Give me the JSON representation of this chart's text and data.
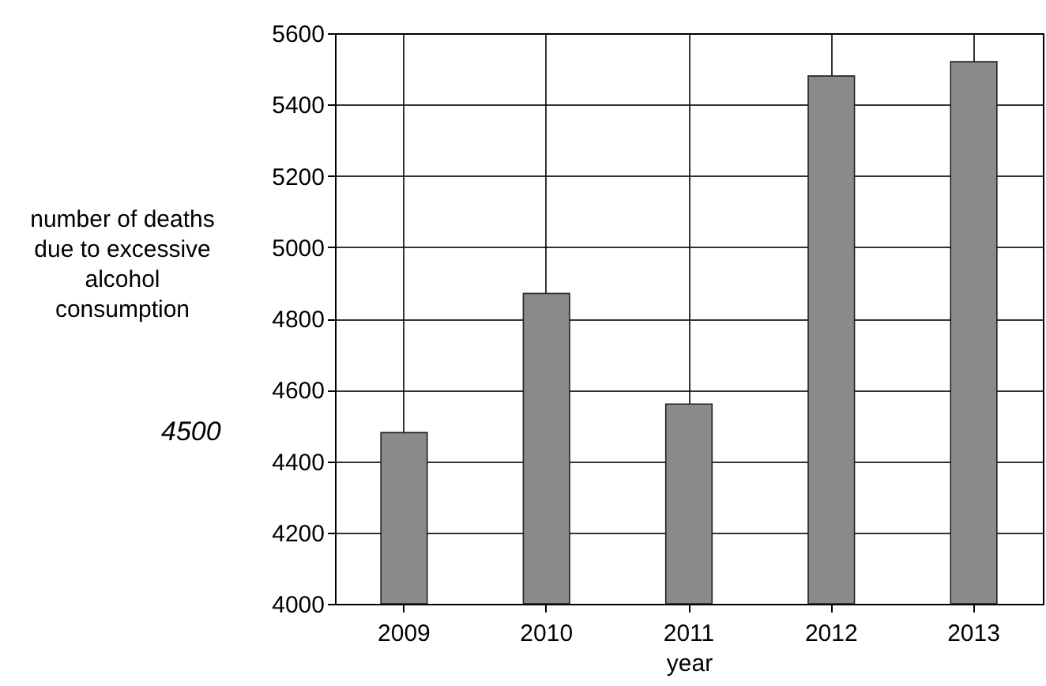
{
  "chart_data": {
    "type": "bar",
    "xlabel": "year",
    "ylabel": "number of deaths due to excessive alcohol consumption",
    "categories": [
      "2009",
      "2010",
      "2011",
      "2012",
      "2013"
    ],
    "values": [
      4480,
      4870,
      4560,
      5480,
      5520
    ],
    "color": "#8a8a8a",
    "ylim": [
      4000,
      5600
    ],
    "yticks": [
      4000,
      4200,
      4400,
      4600,
      4800,
      5000,
      5200,
      5400,
      5600
    ],
    "grid": true,
    "annotations": [
      "4500"
    ]
  }
}
